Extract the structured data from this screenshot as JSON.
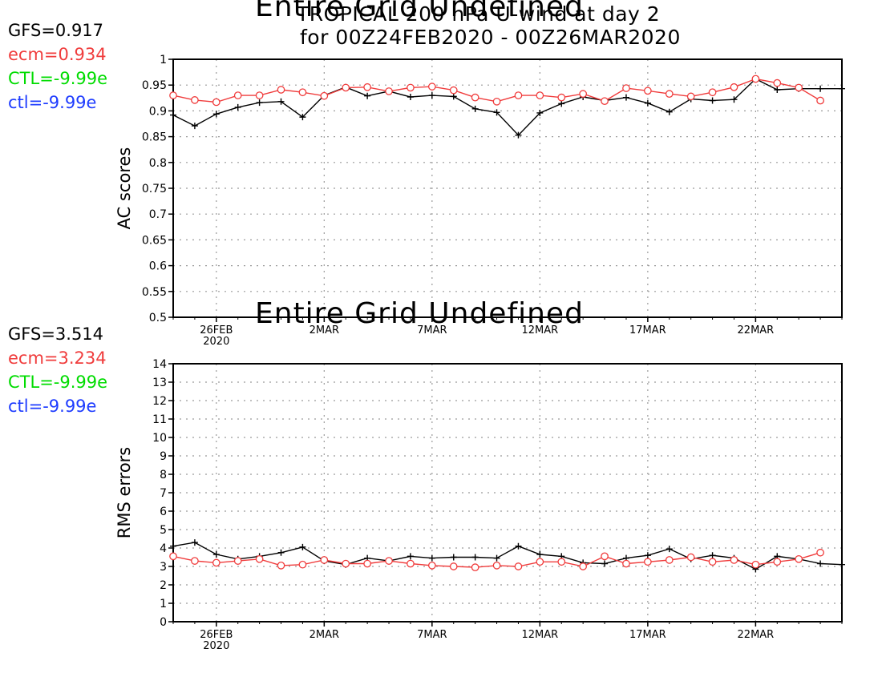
{
  "header": {
    "title_line1": "TROPICAL 200 hPa U-wind at day 2",
    "title_line2": "for 00Z24FEB2020 - 00Z26MAR2020"
  },
  "stats_top": [
    {
      "text": "GFS=0.917",
      "color": "#000000"
    },
    {
      "text": "ecm=0.934",
      "color": "#f03c3c"
    },
    {
      "text": "CTL=-9.99e",
      "color": "#00dc00"
    },
    {
      "text": "ctl=-9.99e",
      "color": "#1e3cff"
    }
  ],
  "stats_bottom": [
    {
      "text": "GFS=3.514",
      "color": "#000000"
    },
    {
      "text": "ecm=3.234",
      "color": "#f03c3c"
    },
    {
      "text": "CTL=-9.99e",
      "color": "#00dc00"
    },
    {
      "text": "ctl=-9.99e",
      "color": "#1e3cff"
    }
  ],
  "overlay_text": "Entire Grid Undefined",
  "chart_data": [
    {
      "type": "line",
      "ylabel": "AC scores",
      "ylim": [
        0.5,
        1
      ],
      "yticks": [
        "0.5",
        "0.55",
        "0.6",
        "0.65",
        "0.7",
        "0.75",
        "0.8",
        "0.85",
        "0.9",
        "0.95",
        "1"
      ],
      "x_start": "2020-02-24",
      "x_end": "2020-03-26",
      "xticks": [
        {
          "date": "2020-02-26",
          "label": "26FEB",
          "sub": "2020"
        },
        {
          "date": "2020-03-02",
          "label": "2MAR",
          "sub": ""
        },
        {
          "date": "2020-03-07",
          "label": "7MAR",
          "sub": ""
        },
        {
          "date": "2020-03-12",
          "label": "12MAR",
          "sub": ""
        },
        {
          "date": "2020-03-17",
          "label": "17MAR",
          "sub": ""
        },
        {
          "date": "2020-03-22",
          "label": "22MAR",
          "sub": ""
        }
      ],
      "grid": true,
      "series": [
        {
          "name": "GFS",
          "color": "#000000",
          "marker": "plus",
          "dates": [
            "2020-02-24",
            "2020-02-25",
            "2020-02-26",
            "2020-02-27",
            "2020-02-28",
            "2020-02-29",
            "2020-03-01",
            "2020-03-02",
            "2020-03-03",
            "2020-03-04",
            "2020-03-05",
            "2020-03-06",
            "2020-03-07",
            "2020-03-08",
            "2020-03-09",
            "2020-03-10",
            "2020-03-11",
            "2020-03-12",
            "2020-03-13",
            "2020-03-14",
            "2020-03-15",
            "2020-03-16",
            "2020-03-17",
            "2020-03-18",
            "2020-03-19",
            "2020-03-20",
            "2020-03-21",
            "2020-03-22",
            "2020-03-23",
            "2020-03-24",
            "2020-03-25",
            "2020-03-26"
          ],
          "values": [
            0.892,
            0.871,
            0.894,
            0.907,
            0.916,
            0.918,
            0.888,
            0.93,
            0.946,
            0.929,
            0.938,
            0.927,
            0.93,
            0.928,
            0.904,
            0.897,
            0.853,
            0.896,
            0.914,
            0.927,
            0.92,
            0.926,
            0.915,
            0.898,
            0.923,
            0.92,
            0.922,
            0.962,
            0.941,
            0.943,
            0.943,
            0.943
          ]
        },
        {
          "name": "ecm",
          "color": "#f03c3c",
          "marker": "circle",
          "dates": [
            "2020-02-24",
            "2020-02-25",
            "2020-02-26",
            "2020-02-27",
            "2020-02-28",
            "2020-02-29",
            "2020-03-01",
            "2020-03-02",
            "2020-03-03",
            "2020-03-04",
            "2020-03-05",
            "2020-03-06",
            "2020-03-07",
            "2020-03-08",
            "2020-03-09",
            "2020-03-10",
            "2020-03-11",
            "2020-03-12",
            "2020-03-13",
            "2020-03-14",
            "2020-03-15",
            "2020-03-16",
            "2020-03-17",
            "2020-03-18",
            "2020-03-19",
            "2020-03-20",
            "2020-03-21",
            "2020-03-22",
            "2020-03-23",
            "2020-03-24",
            "2020-03-25"
          ],
          "values": [
            0.93,
            0.921,
            0.917,
            0.93,
            0.93,
            0.941,
            0.936,
            0.929,
            0.945,
            0.946,
            0.938,
            0.945,
            0.947,
            0.94,
            0.926,
            0.918,
            0.93,
            0.93,
            0.926,
            0.933,
            0.919,
            0.944,
            0.939,
            0.933,
            0.928,
            0.936,
            0.946,
            0.962,
            0.954,
            0.945,
            0.92
          ]
        }
      ]
    },
    {
      "type": "line",
      "ylabel": "RMS errors",
      "ylim": [
        0,
        14
      ],
      "yticks": [
        "0",
        "1",
        "2",
        "3",
        "4",
        "5",
        "6",
        "7",
        "8",
        "9",
        "10",
        "11",
        "12",
        "13",
        "14"
      ],
      "x_start": "2020-02-24",
      "x_end": "2020-03-26",
      "xticks": [
        {
          "date": "2020-02-26",
          "label": "26FEB",
          "sub": "2020"
        },
        {
          "date": "2020-03-02",
          "label": "2MAR",
          "sub": ""
        },
        {
          "date": "2020-03-07",
          "label": "7MAR",
          "sub": ""
        },
        {
          "date": "2020-03-12",
          "label": "12MAR",
          "sub": ""
        },
        {
          "date": "2020-03-17",
          "label": "17MAR",
          "sub": ""
        },
        {
          "date": "2020-03-22",
          "label": "22MAR",
          "sub": ""
        }
      ],
      "grid": true,
      "series": [
        {
          "name": "GFS",
          "color": "#000000",
          "marker": "plus",
          "dates": [
            "2020-02-24",
            "2020-02-25",
            "2020-02-26",
            "2020-02-27",
            "2020-02-28",
            "2020-02-29",
            "2020-03-01",
            "2020-03-02",
            "2020-03-03",
            "2020-03-04",
            "2020-03-05",
            "2020-03-06",
            "2020-03-07",
            "2020-03-08",
            "2020-03-09",
            "2020-03-10",
            "2020-03-11",
            "2020-03-12",
            "2020-03-13",
            "2020-03-14",
            "2020-03-15",
            "2020-03-16",
            "2020-03-17",
            "2020-03-18",
            "2020-03-19",
            "2020-03-20",
            "2020-03-21",
            "2020-03-22",
            "2020-03-23",
            "2020-03-24",
            "2020-03-25",
            "2020-03-26"
          ],
          "values": [
            4.1,
            4.3,
            3.65,
            3.4,
            3.55,
            3.75,
            4.05,
            3.3,
            3.1,
            3.45,
            3.3,
            3.55,
            3.45,
            3.5,
            3.5,
            3.45,
            4.1,
            3.65,
            3.55,
            3.2,
            3.15,
            3.45,
            3.6,
            3.95,
            3.4,
            3.6,
            3.45,
            2.85,
            3.55,
            3.4,
            3.15,
            3.1
          ]
        },
        {
          "name": "ecm",
          "color": "#f03c3c",
          "marker": "circle",
          "dates": [
            "2020-02-24",
            "2020-02-25",
            "2020-02-26",
            "2020-02-27",
            "2020-02-28",
            "2020-02-29",
            "2020-03-01",
            "2020-03-02",
            "2020-03-03",
            "2020-03-04",
            "2020-03-05",
            "2020-03-06",
            "2020-03-07",
            "2020-03-08",
            "2020-03-09",
            "2020-03-10",
            "2020-03-11",
            "2020-03-12",
            "2020-03-13",
            "2020-03-14",
            "2020-03-15",
            "2020-03-16",
            "2020-03-17",
            "2020-03-18",
            "2020-03-19",
            "2020-03-20",
            "2020-03-21",
            "2020-03-22",
            "2020-03-23",
            "2020-03-24",
            "2020-03-25"
          ],
          "values": [
            3.55,
            3.3,
            3.2,
            3.3,
            3.4,
            3.05,
            3.1,
            3.35,
            3.15,
            3.15,
            3.3,
            3.15,
            3.05,
            3.0,
            2.95,
            3.05,
            3.0,
            3.25,
            3.25,
            3.0,
            3.55,
            3.15,
            3.25,
            3.35,
            3.5,
            3.25,
            3.35,
            3.1,
            3.25,
            3.4,
            3.75
          ]
        }
      ]
    }
  ]
}
